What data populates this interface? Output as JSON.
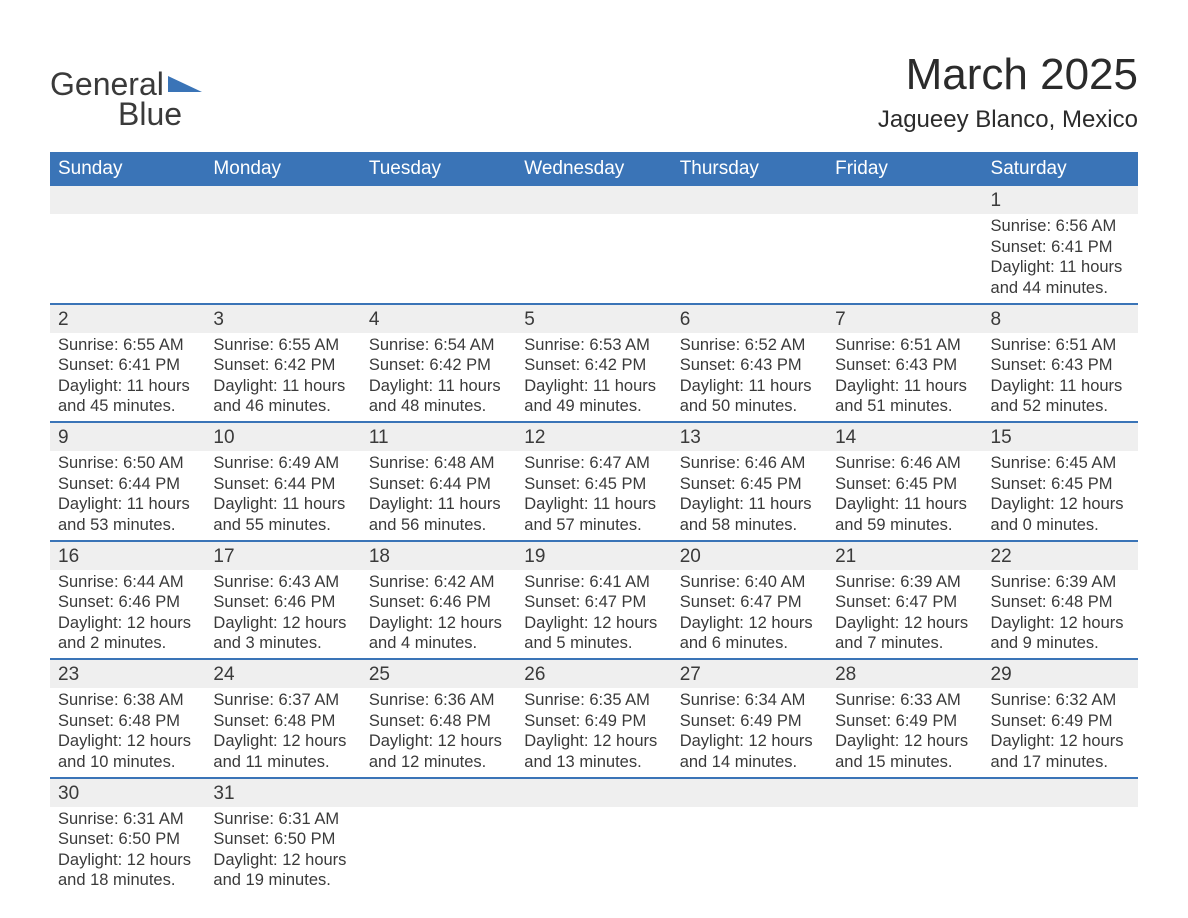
{
  "logo": {
    "text1": "General",
    "text2": "Blue",
    "triangle_color": "#3a74b7"
  },
  "title": "March 2025",
  "location": "Jagueey Blanco, Mexico",
  "header_bg": "#3a74b7",
  "daynum_bg": "#efefef",
  "border_color": "#3a74b7",
  "daynames": [
    "Sunday",
    "Monday",
    "Tuesday",
    "Wednesday",
    "Thursday",
    "Friday",
    "Saturday"
  ],
  "weeks": [
    [
      null,
      null,
      null,
      null,
      null,
      null,
      {
        "n": "1",
        "sr": "6:56 AM",
        "ss": "6:41 PM",
        "dl": "11 hours and 44 minutes."
      }
    ],
    [
      {
        "n": "2",
        "sr": "6:55 AM",
        "ss": "6:41 PM",
        "dl": "11 hours and 45 minutes."
      },
      {
        "n": "3",
        "sr": "6:55 AM",
        "ss": "6:42 PM",
        "dl": "11 hours and 46 minutes."
      },
      {
        "n": "4",
        "sr": "6:54 AM",
        "ss": "6:42 PM",
        "dl": "11 hours and 48 minutes."
      },
      {
        "n": "5",
        "sr": "6:53 AM",
        "ss": "6:42 PM",
        "dl": "11 hours and 49 minutes."
      },
      {
        "n": "6",
        "sr": "6:52 AM",
        "ss": "6:43 PM",
        "dl": "11 hours and 50 minutes."
      },
      {
        "n": "7",
        "sr": "6:51 AM",
        "ss": "6:43 PM",
        "dl": "11 hours and 51 minutes."
      },
      {
        "n": "8",
        "sr": "6:51 AM",
        "ss": "6:43 PM",
        "dl": "11 hours and 52 minutes."
      }
    ],
    [
      {
        "n": "9",
        "sr": "6:50 AM",
        "ss": "6:44 PM",
        "dl": "11 hours and 53 minutes."
      },
      {
        "n": "10",
        "sr": "6:49 AM",
        "ss": "6:44 PM",
        "dl": "11 hours and 55 minutes."
      },
      {
        "n": "11",
        "sr": "6:48 AM",
        "ss": "6:44 PM",
        "dl": "11 hours and 56 minutes."
      },
      {
        "n": "12",
        "sr": "6:47 AM",
        "ss": "6:45 PM",
        "dl": "11 hours and 57 minutes."
      },
      {
        "n": "13",
        "sr": "6:46 AM",
        "ss": "6:45 PM",
        "dl": "11 hours and 58 minutes."
      },
      {
        "n": "14",
        "sr": "6:46 AM",
        "ss": "6:45 PM",
        "dl": "11 hours and 59 minutes."
      },
      {
        "n": "15",
        "sr": "6:45 AM",
        "ss": "6:45 PM",
        "dl": "12 hours and 0 minutes."
      }
    ],
    [
      {
        "n": "16",
        "sr": "6:44 AM",
        "ss": "6:46 PM",
        "dl": "12 hours and 2 minutes."
      },
      {
        "n": "17",
        "sr": "6:43 AM",
        "ss": "6:46 PM",
        "dl": "12 hours and 3 minutes."
      },
      {
        "n": "18",
        "sr": "6:42 AM",
        "ss": "6:46 PM",
        "dl": "12 hours and 4 minutes."
      },
      {
        "n": "19",
        "sr": "6:41 AM",
        "ss": "6:47 PM",
        "dl": "12 hours and 5 minutes."
      },
      {
        "n": "20",
        "sr": "6:40 AM",
        "ss": "6:47 PM",
        "dl": "12 hours and 6 minutes."
      },
      {
        "n": "21",
        "sr": "6:39 AM",
        "ss": "6:47 PM",
        "dl": "12 hours and 7 minutes."
      },
      {
        "n": "22",
        "sr": "6:39 AM",
        "ss": "6:48 PM",
        "dl": "12 hours and 9 minutes."
      }
    ],
    [
      {
        "n": "23",
        "sr": "6:38 AM",
        "ss": "6:48 PM",
        "dl": "12 hours and 10 minutes."
      },
      {
        "n": "24",
        "sr": "6:37 AM",
        "ss": "6:48 PM",
        "dl": "12 hours and 11 minutes."
      },
      {
        "n": "25",
        "sr": "6:36 AM",
        "ss": "6:48 PM",
        "dl": "12 hours and 12 minutes."
      },
      {
        "n": "26",
        "sr": "6:35 AM",
        "ss": "6:49 PM",
        "dl": "12 hours and 13 minutes."
      },
      {
        "n": "27",
        "sr": "6:34 AM",
        "ss": "6:49 PM",
        "dl": "12 hours and 14 minutes."
      },
      {
        "n": "28",
        "sr": "6:33 AM",
        "ss": "6:49 PM",
        "dl": "12 hours and 15 minutes."
      },
      {
        "n": "29",
        "sr": "6:32 AM",
        "ss": "6:49 PM",
        "dl": "12 hours and 17 minutes."
      }
    ],
    [
      {
        "n": "30",
        "sr": "6:31 AM",
        "ss": "6:50 PM",
        "dl": "12 hours and 18 minutes."
      },
      {
        "n": "31",
        "sr": "6:31 AM",
        "ss": "6:50 PM",
        "dl": "12 hours and 19 minutes."
      },
      null,
      null,
      null,
      null,
      null
    ]
  ],
  "labels": {
    "sunrise": "Sunrise: ",
    "sunset": "Sunset: ",
    "daylight": "Daylight: "
  }
}
